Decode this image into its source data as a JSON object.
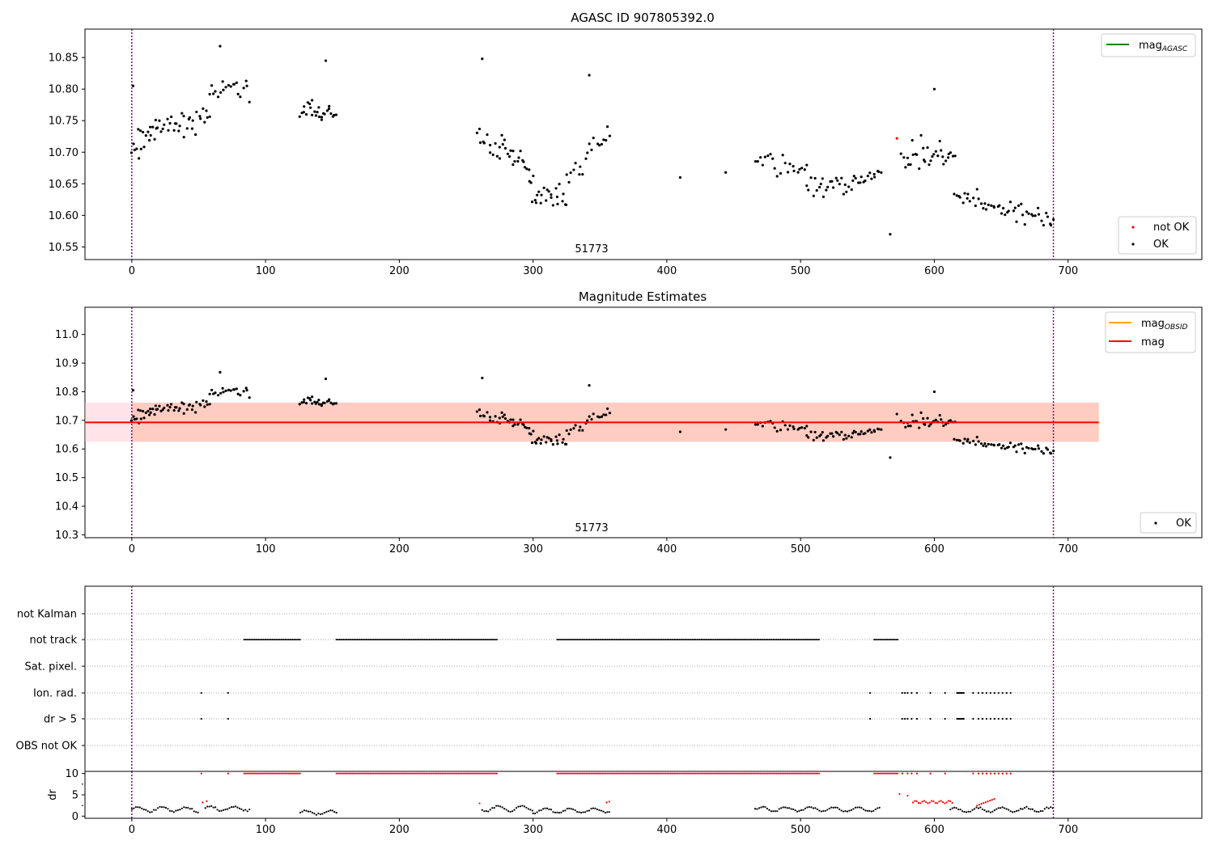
{
  "figure_title": "AGASC ID 907805392.0",
  "chart_data": [
    {
      "type": "scatter",
      "title": "",
      "annotation": "51773",
      "xlim": [
        -35,
        800
      ],
      "ylim": [
        10.53,
        10.895
      ],
      "x_ticks": [
        0,
        100,
        200,
        300,
        400,
        500,
        600,
        700
      ],
      "y_ticks": [
        "10.55",
        "10.60",
        "10.65",
        "10.70",
        "10.75",
        "10.80",
        "10.85"
      ],
      "vlines": [
        0,
        689
      ],
      "legend_upper": {
        "placement": "top-right",
        "entries": [
          {
            "label": "mag",
            "sub": "AGASC",
            "color": "#008000"
          }
        ]
      },
      "legend_lower": {
        "placement": "bottom-right",
        "entries": [
          {
            "label": "not OK",
            "color": "#ff0000"
          },
          {
            "label": "OK",
            "color": "#000000"
          }
        ]
      },
      "series": [
        {
          "name": "OK",
          "color": "#000000",
          "points": []
        },
        {
          "name": "not OK",
          "color": "#ff0000",
          "points": [
            [
              572,
              10.722
            ]
          ]
        }
      ]
    },
    {
      "type": "scatter",
      "title": "Magnitude Estimates",
      "annotation": "51773",
      "xlim": [
        -35,
        800
      ],
      "ylim": [
        10.29,
        11.095
      ],
      "x_ticks": [
        0,
        100,
        200,
        300,
        400,
        500,
        600,
        700
      ],
      "y_ticks": [
        "10.3",
        "10.4",
        "10.5",
        "10.6",
        "10.7",
        "10.8",
        "10.9",
        "11.0"
      ],
      "vlines": [
        0,
        689
      ],
      "mag_line": 10.693,
      "mag_band": [
        10.625,
        10.762
      ],
      "mag_band_xrange": [
        -35,
        723
      ],
      "legend_upper": {
        "placement": "top-right",
        "entries": [
          {
            "label": "mag",
            "sub": "OBSID",
            "color": "#ffa500"
          },
          {
            "label": "mag",
            "color": "#ff0000"
          }
        ]
      },
      "legend_lower": {
        "placement": "bottom-right",
        "entries": [
          {
            "label": "OK",
            "color": "#000000"
          }
        ]
      }
    },
    {
      "type": "scatter",
      "title": "",
      "xlim": [
        -35,
        800
      ],
      "y_categories": [
        "not Kalman",
        "not track",
        "Sat. pixel.",
        "Ion. rad.",
        "dr > 5",
        "OBS not OK"
      ],
      "vlines": [
        0,
        689
      ],
      "flags": {
        "not track": [
          [
            84,
            126
          ],
          [
            153,
            273
          ],
          [
            318,
            514
          ],
          [
            555,
            573
          ]
        ],
        "Ion. rad.": [
          52,
          72,
          552,
          576,
          578,
          580,
          583,
          587,
          597,
          608,
          617,
          618,
          619,
          620,
          621,
          622,
          629,
          633,
          636,
          639,
          642,
          645,
          648,
          651,
          654,
          657
        ],
        "dr > 5": [
          52,
          72,
          552,
          576,
          578,
          580,
          583,
          587,
          597,
          608,
          617,
          618,
          619,
          620,
          621,
          622,
          629,
          633,
          636,
          639,
          642,
          645,
          648,
          651,
          654,
          657
        ]
      }
    },
    {
      "type": "scatter",
      "title": "",
      "ylabel": "dr",
      "xlim": [
        -35,
        800
      ],
      "ylim": [
        -0.5,
        10.5
      ],
      "x_ticks": [
        0,
        100,
        200,
        300,
        400,
        500,
        600,
        700
      ],
      "y_ticks": [
        "0",
        "5",
        "10"
      ],
      "vlines": [
        0,
        689
      ]
    }
  ]
}
